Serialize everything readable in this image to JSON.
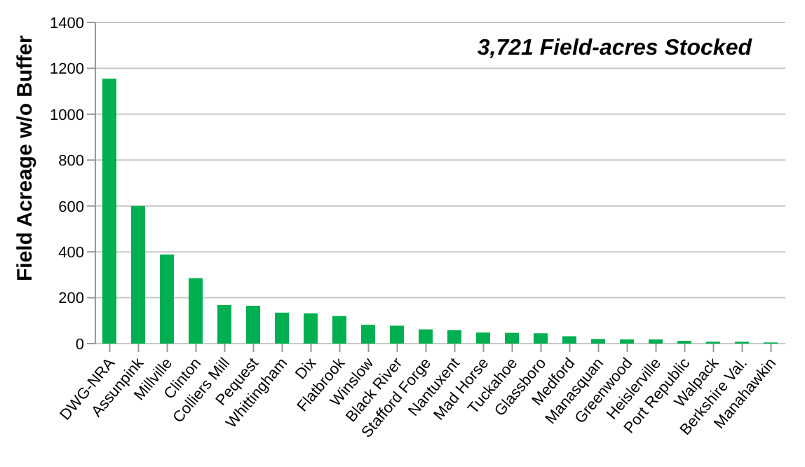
{
  "chart_data": {
    "type": "bar",
    "ylabel": "Field Acreage w/o Buffer",
    "annotations": [
      "3,721 Field-acres Stocked"
    ],
    "categories": [
      "DWG-NRA",
      "Assunpink",
      "Millville",
      "Clinton",
      "Colliers Mill",
      "Pequest",
      "Whittingham",
      "Dix",
      "Flatbrook",
      "Winslow",
      "Black River",
      "Stafford Forge",
      "Nantuxent",
      "Mad Horse",
      "Tuckahoe",
      "Glassboro",
      "Medford",
      "Manasquan",
      "Greenwood",
      "Heislerville",
      "Port Republic",
      "Walpack",
      "Berkshire Val.",
      "Manahawkin"
    ],
    "values": [
      1155,
      600,
      388,
      285,
      168,
      165,
      135,
      132,
      120,
      82,
      78,
      62,
      58,
      48,
      47,
      45,
      32,
      20,
      18,
      18,
      12,
      8,
      8,
      5
    ],
    "color": "#00b050",
    "ylim": [
      0,
      1400
    ],
    "yticks": [
      0,
      200,
      400,
      600,
      800,
      1000,
      1200,
      1400
    ],
    "grid": "y"
  }
}
